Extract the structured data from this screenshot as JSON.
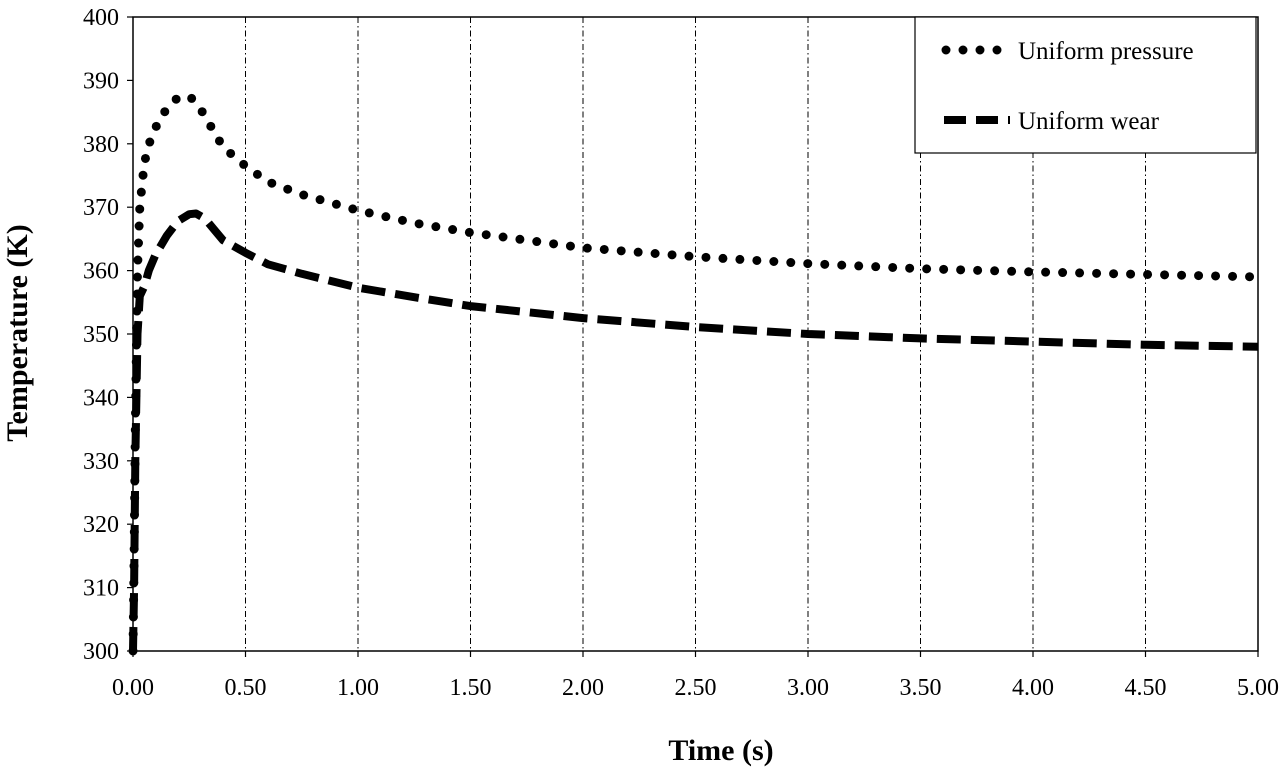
{
  "chart_data": {
    "type": "line",
    "xlabel": "Time (s)",
    "ylabel": "Temperature (K)",
    "xlim": [
      0,
      5
    ],
    "ylim": [
      300,
      400
    ],
    "x_ticks": [
      "0.00",
      "0.50",
      "1.00",
      "1.50",
      "2.00",
      "2.50",
      "3.00",
      "3.50",
      "4.00",
      "4.50",
      "5.00"
    ],
    "y_ticks": [
      "300",
      "310",
      "320",
      "330",
      "340",
      "350",
      "360",
      "370",
      "380",
      "390",
      "400"
    ],
    "grid": {
      "vertical": true,
      "horizontal": false,
      "style": "dash-dot"
    },
    "legend_position": "top-right",
    "series": [
      {
        "name": "Uniform pressure",
        "line_style": "dotted",
        "color": "#000000",
        "x": [
          0,
          0.005,
          0.01,
          0.02,
          0.03,
          0.05,
          0.08,
          0.12,
          0.16,
          0.2,
          0.23,
          0.26,
          0.3,
          0.35,
          0.4,
          0.5,
          0.6,
          0.75,
          1.0,
          1.25,
          1.5,
          2.0,
          2.5,
          3.0,
          3.5,
          4.0,
          4.5,
          5.0
        ],
        "y": [
          300,
          315,
          335,
          360,
          370,
          377,
          381,
          384,
          386,
          387.3,
          387.6,
          387.2,
          385.5,
          382.5,
          379.5,
          376.5,
          374,
          372,
          369.5,
          367.5,
          366,
          363.6,
          362.2,
          361.1,
          360.3,
          359.8,
          359.4,
          359.0
        ]
      },
      {
        "name": "Uniform wear",
        "line_style": "dashed",
        "color": "#000000",
        "x": [
          0,
          0.005,
          0.01,
          0.02,
          0.03,
          0.05,
          0.07,
          0.1,
          0.15,
          0.2,
          0.25,
          0.28,
          0.32,
          0.36,
          0.4,
          0.5,
          0.6,
          0.75,
          1.0,
          1.25,
          1.5,
          2.0,
          2.5,
          3.0,
          3.5,
          4.0,
          4.5,
          5.0
        ],
        "y": [
          300,
          310,
          330,
          350,
          356,
          357.5,
          360,
          362.5,
          365.5,
          367.8,
          368.9,
          369.0,
          368.2,
          366.5,
          364.8,
          362.8,
          361.0,
          359.5,
          357.3,
          355.8,
          354.4,
          352.5,
          351.1,
          350.0,
          349.3,
          348.8,
          348.3,
          348.0
        ]
      }
    ]
  }
}
